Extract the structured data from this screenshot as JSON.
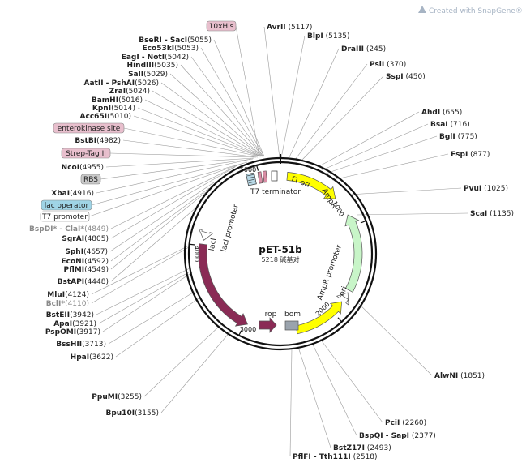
{
  "watermark": "Created with SnapGene®",
  "plasmid": {
    "name": "pET-51b",
    "size_text": "5218 碱基对"
  },
  "ticks": [
    "1000",
    "2000",
    "3000",
    "4000",
    "5000"
  ],
  "sites_right": [
    {
      "name": "AvrII",
      "pos": "(5117)"
    },
    {
      "name": "BlpI",
      "pos": "(5135)"
    },
    {
      "name": "DraIII",
      "pos": "(245)"
    },
    {
      "name": "PsiI",
      "pos": "(370)"
    },
    {
      "name": "SspI",
      "pos": "(450)"
    },
    {
      "name": "AhdI",
      "pos": "(655)"
    },
    {
      "name": "BsaI",
      "pos": "(716)"
    },
    {
      "name": "BglI",
      "pos": "(775)"
    },
    {
      "name": "FspI",
      "pos": "(877)"
    },
    {
      "name": "PvuI",
      "pos": "(1025)"
    },
    {
      "name": "ScaI",
      "pos": "(1135)"
    },
    {
      "name": "AlwNI",
      "pos": "(1851)"
    },
    {
      "name": "PciI",
      "pos": "(2260)"
    },
    {
      "name": "BspQI - SapI",
      "pos": "(2377)"
    },
    {
      "name": "BstZ17I",
      "pos": "(2493)"
    },
    {
      "name": "PflFI - Tth111I",
      "pos": "(2518)"
    }
  ],
  "sites_left": [
    {
      "name": "BseRI - SacI",
      "pos": "(5055)"
    },
    {
      "name": "Eco53kI",
      "pos": "(5053)"
    },
    {
      "name": "EagI - NotI",
      "pos": "(5042)"
    },
    {
      "name": "HindIII",
      "pos": "(5035)"
    },
    {
      "name": "SalI",
      "pos": "(5029)"
    },
    {
      "name": "AatII - PshAI",
      "pos": "(5026)"
    },
    {
      "name": "ZraI",
      "pos": "(5024)"
    },
    {
      "name": "BamHI",
      "pos": "(5016)"
    },
    {
      "name": "KpnI",
      "pos": "(5014)"
    },
    {
      "name": "Acc65I",
      "pos": "(5010)"
    },
    {
      "name": "BstBI",
      "pos": "(4982)"
    },
    {
      "name": "NcoI",
      "pos": "(4955)"
    },
    {
      "name": "XbaI",
      "pos": "(4916)"
    },
    {
      "name": "BspDI* - ClaI*",
      "pos": "(4849)",
      "dim": true
    },
    {
      "name": "SgrAI",
      "pos": "(4805)"
    },
    {
      "name": "SphI",
      "pos": "(4657)"
    },
    {
      "name": "EcoNI",
      "pos": "(4592)"
    },
    {
      "name": "PflMI",
      "pos": "(4549)"
    },
    {
      "name": "BstAPI",
      "pos": "(4448)"
    },
    {
      "name": "MluI",
      "pos": "(4124)"
    },
    {
      "name": "BclI*",
      "pos": "(4110)",
      "dim": true
    },
    {
      "name": "BstEII",
      "pos": "(3942)"
    },
    {
      "name": "ApaI",
      "pos": "(3921)"
    },
    {
      "name": "PspOMI",
      "pos": "(3917)"
    },
    {
      "name": "BssHII",
      "pos": "(3713)"
    },
    {
      "name": "HpaI",
      "pos": "(3622)"
    },
    {
      "name": "PpuMI",
      "pos": "(3255)"
    },
    {
      "name": "Bpu10I",
      "pos": "(3155)"
    }
  ],
  "feature_boxes": [
    {
      "label": "10xHis",
      "color": "#e8bfcd"
    },
    {
      "label": "enterokinase site",
      "color": "#e8bfcd"
    },
    {
      "label": "Strep-Tag II",
      "color": "#e8bfcd"
    },
    {
      "label": "RBS",
      "color": "#c9c9c9"
    },
    {
      "label": "lac operator",
      "color": "#9fd4e6"
    },
    {
      "label": "T7 promoter",
      "color": "#ffffff"
    }
  ],
  "features": {
    "f1_ori": "f1 ori",
    "ampr": "AmpR",
    "ampr_promoter": "AmpR promoter",
    "ori": "ori",
    "bom": "bom",
    "rop": "rop",
    "laci": "lacI",
    "laci_promoter": "lacI promoter",
    "t7_terminator": "T7 terminator"
  }
}
